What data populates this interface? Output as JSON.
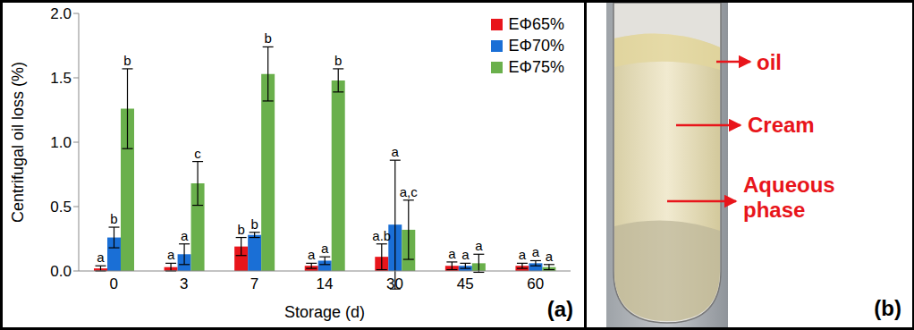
{
  "chart_data": {
    "type": "bar",
    "panel_label": "(a)",
    "xlabel": "Storage (d)",
    "ylabel": "Centrifugal oil loss (%)",
    "categories": [
      "0",
      "3",
      "7",
      "14",
      "30",
      "45",
      "60"
    ],
    "ylim": [
      0,
      2
    ],
    "yticks": [
      {
        "value": 0,
        "label": "0.0"
      },
      {
        "value": 0.5,
        "label": "0.5"
      },
      {
        "value": 1,
        "label": "1.0"
      },
      {
        "value": 1.5,
        "label": "1.5"
      },
      {
        "value": 2,
        "label": "2.0"
      }
    ],
    "grid": false,
    "legend": "upper right",
    "series": [
      {
        "name": "EΦ65%",
        "color": "#e8151b",
        "values": [
          0.02,
          0.03,
          0.19,
          0.04,
          0.11,
          0.04,
          0.04
        ],
        "errors": [
          0.02,
          0.03,
          0.07,
          0.02,
          0.1,
          0.03,
          0.02
        ],
        "letters": [
          "a",
          "a",
          "b",
          "a",
          "a.b",
          "a",
          "a"
        ]
      },
      {
        "name": "EΦ70%",
        "color": "#1a6fd6",
        "values": [
          0.26,
          0.13,
          0.28,
          0.08,
          0.36,
          0.04,
          0.06
        ],
        "errors": [
          0.08,
          0.08,
          0.02,
          0.03,
          0.5,
          0.02,
          0.02
        ],
        "letters": [
          "b",
          "a",
          "b",
          "a",
          "a",
          "a",
          "a"
        ]
      },
      {
        "name": "EΦ75%",
        "color": "#6ab04c",
        "values": [
          1.26,
          0.68,
          1.53,
          1.48,
          0.32,
          0.06,
          0.03
        ],
        "errors": [
          0.31,
          0.17,
          0.21,
          0.09,
          0.23,
          0.07,
          0.02
        ],
        "letters": [
          "b",
          "c",
          "b",
          "b",
          "a,c",
          "a",
          "a"
        ]
      }
    ]
  },
  "photo": {
    "panel_label": "(b)",
    "annotations": [
      "oil",
      "Cream",
      "Aqueous phase"
    ]
  }
}
